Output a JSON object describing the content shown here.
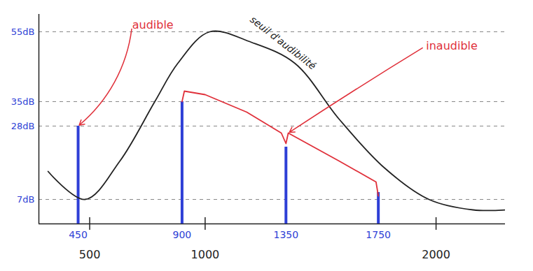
{
  "chart_data": {
    "type": "bar",
    "xlim": [
      280,
      2300
    ],
    "ylim": [
      0,
      60
    ],
    "xticks": [
      450,
      500,
      900,
      1000,
      1350,
      1750,
      2000
    ],
    "yticks": [
      {
        "value": 7,
        "label": "7dB"
      },
      {
        "value": 28,
        "label": "28dB"
      },
      {
        "value": 35,
        "label": "35dB"
      },
      {
        "value": 55,
        "label": "55dB"
      }
    ],
    "grid": true,
    "series": [
      {
        "type": "bar",
        "color": "#2e3fd6",
        "x": [
          450,
          900,
          1350,
          1750
        ],
        "values": [
          28,
          35,
          22,
          9
        ]
      },
      {
        "name": "seuil d'audibilité",
        "type": "line",
        "color": "#222222",
        "x": [
          320,
          480,
          631,
          782,
          882,
          1020,
          1200,
          1388,
          1580,
          1777,
          1969,
          2160,
          2300
        ],
        "values": [
          15,
          7,
          18,
          35,
          46,
          55,
          52,
          46,
          30,
          16,
          7,
          4,
          4
        ]
      },
      {
        "type": "line",
        "color": "#e0303a",
        "x": [
          900,
          910,
          1000,
          1180,
          1330,
          1350,
          1360,
          1580,
          1740,
          1750
        ],
        "values": [
          35,
          38,
          37,
          32,
          26,
          23,
          26,
          18,
          12,
          8
        ]
      }
    ],
    "annotations": [
      {
        "text": "audible",
        "color": "#e0303a"
      },
      {
        "text": "inaudible",
        "color": "#e0303a"
      }
    ]
  }
}
